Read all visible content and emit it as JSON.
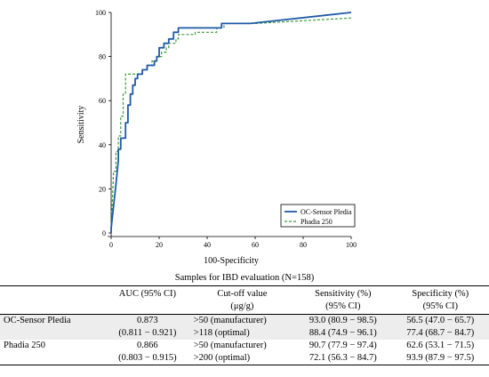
{
  "chart_data": {
    "type": "line",
    "xlabel": "100-Specificity",
    "ylabel": "Sensitivity",
    "xlim": [
      0,
      100
    ],
    "ylim": [
      0,
      100
    ],
    "x_ticks": [
      "0",
      "20",
      "40",
      "60",
      "80",
      "100"
    ],
    "y_ticks": [
      "0",
      "20",
      "40",
      "60",
      "80",
      "100"
    ],
    "grid": false,
    "legend_position": "bottom-right",
    "series": [
      {
        "name": "OC-Sensor Pledia",
        "color": "#1f5aa6",
        "style": "solid",
        "points": [
          [
            0,
            0
          ],
          [
            0,
            2
          ],
          [
            1,
            12
          ],
          [
            2,
            22
          ],
          [
            3,
            33
          ],
          [
            3,
            38
          ],
          [
            4,
            38
          ],
          [
            4,
            43
          ],
          [
            6,
            43
          ],
          [
            6,
            50
          ],
          [
            7,
            50
          ],
          [
            7,
            58
          ],
          [
            8,
            58
          ],
          [
            8,
            63
          ],
          [
            9,
            63
          ],
          [
            9,
            67
          ],
          [
            10,
            67
          ],
          [
            10,
            70
          ],
          [
            11,
            70
          ],
          [
            11,
            72
          ],
          [
            13,
            72
          ],
          [
            13,
            74
          ],
          [
            15,
            74
          ],
          [
            15,
            76
          ],
          [
            18,
            76
          ],
          [
            18,
            78
          ],
          [
            19,
            78
          ],
          [
            19,
            80
          ],
          [
            20,
            80
          ],
          [
            20,
            84
          ],
          [
            22,
            84
          ],
          [
            22,
            86
          ],
          [
            24,
            86
          ],
          [
            24,
            88
          ],
          [
            26,
            88
          ],
          [
            26,
            91
          ],
          [
            28,
            91
          ],
          [
            28,
            93
          ],
          [
            46,
            93
          ],
          [
            46,
            95
          ],
          [
            58,
            95
          ],
          [
            100,
            100
          ]
        ]
      },
      {
        "name": "Phadia 250",
        "color": "#3a9a3a",
        "style": "dashed",
        "points": [
          [
            0,
            0
          ],
          [
            1,
            28
          ],
          [
            2,
            28
          ],
          [
            2,
            37
          ],
          [
            3,
            37
          ],
          [
            3,
            44
          ],
          [
            4,
            44
          ],
          [
            4,
            53
          ],
          [
            5,
            53
          ],
          [
            5,
            63
          ],
          [
            6,
            63
          ],
          [
            6,
            72
          ],
          [
            13,
            72
          ],
          [
            13,
            74
          ],
          [
            15,
            74
          ],
          [
            15,
            76
          ],
          [
            17,
            76
          ],
          [
            17,
            78
          ],
          [
            19,
            78
          ],
          [
            19,
            80
          ],
          [
            21,
            80
          ],
          [
            21,
            82
          ],
          [
            23,
            82
          ],
          [
            23,
            84
          ],
          [
            24,
            84
          ],
          [
            24,
            86
          ],
          [
            27,
            86
          ],
          [
            27,
            88
          ],
          [
            28,
            88
          ],
          [
            28,
            90
          ],
          [
            35,
            90
          ],
          [
            35,
            91
          ],
          [
            44,
            91
          ],
          [
            44,
            93
          ],
          [
            47,
            93
          ],
          [
            47,
            95
          ],
          [
            60,
            95
          ],
          [
            100,
            97.5
          ]
        ]
      }
    ]
  },
  "table": {
    "caption": "Samples for IBD evaluation (N=158)",
    "headers": {
      "auc": "AUC (95% CI)",
      "cutoff_line1": "Cut-off value",
      "cutoff_line2": "(μg/g)",
      "sens_line1": "Sensitivity (%)",
      "sens_line2": "(95% CI)",
      "spec_line1": "Specificity (%)",
      "spec_line2": "(95% CI)"
    },
    "groups": [
      {
        "name": "OC-Sensor Pledia",
        "auc": "0.873",
        "auc_ci": "(0.811 − 0.921)",
        "rows": [
          {
            "cutoff": ">50 (manufacturer)",
            "sensitivity": "93.0 (80.9 − 98.5)",
            "specificity": "56.5 (47.0 − 65.7)"
          },
          {
            "cutoff": ">118 (optimal)",
            "sensitivity": "88.4 (74.9 − 96.1)",
            "specificity": "77.4 (68.7 − 84.7)"
          }
        ]
      },
      {
        "name": "Phadia 250",
        "auc": "0.866",
        "auc_ci": "(0.803 − 0.915)",
        "rows": [
          {
            "cutoff": ">50 (manufacturer)",
            "sensitivity": "90.7 (77.9 − 97.4)",
            "specificity": "62.6 (53.1 − 71.5)"
          },
          {
            "cutoff": ">200 (optimal)",
            "sensitivity": "72.1 (56.3 − 84.7)",
            "specificity": "93.9 (87.9 − 97.5)"
          }
        ]
      }
    ]
  }
}
